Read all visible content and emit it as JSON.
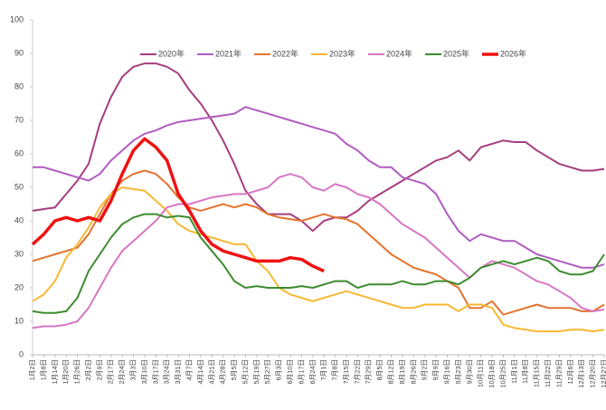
{
  "chart_data": {
    "type": "line",
    "categories": [
      "1月2日",
      "1月8日",
      "1月14日",
      "1月20日",
      "1月26日",
      "2月2日",
      "2月9日",
      "2月17日",
      "2月24日",
      "3月3日",
      "3月10日",
      "3月17日",
      "3月24日",
      "3月31日",
      "4月7日",
      "4月14日",
      "4月21日",
      "4月28日",
      "5月5日",
      "5月12日",
      "5月19日",
      "5月27日",
      "6月3日",
      "6月10日",
      "6月17日",
      "6月24日",
      "7月1日",
      "7月8日",
      "7月15日",
      "7月22日",
      "7月29日",
      "8月5日",
      "8月12日",
      "8月19日",
      "8月26日",
      "9月2日",
      "9月9日",
      "9月16日",
      "9月23日",
      "9月30日",
      "10月11日",
      "10月18日",
      "10月25日",
      "11月1日",
      "11月8日",
      "11月15日",
      "11月22日",
      "11月29日",
      "12月6日",
      "12月13日",
      "12月20日",
      "12月27日"
    ],
    "series": [
      {
        "name": "2020年",
        "color": "#a63d7e",
        "values": [
          43,
          43.5,
          44,
          48,
          52,
          57,
          69,
          77,
          83,
          86,
          87,
          87,
          86,
          84,
          79,
          75,
          70,
          64,
          57,
          49,
          45,
          42,
          42,
          42,
          40,
          37,
          40,
          41,
          41,
          43,
          46,
          48,
          50,
          52,
          54,
          56,
          58,
          59,
          61,
          58,
          62,
          63,
          64,
          63.5,
          63.5,
          61,
          59,
          57,
          56,
          55,
          55,
          55.5
        ]
      },
      {
        "name": "2021年",
        "color": "#b05cc0",
        "values": [
          56,
          56,
          55,
          54,
          53,
          52,
          54,
          58,
          61,
          64,
          66,
          67,
          68.5,
          69.5,
          70,
          70.5,
          71,
          71.5,
          72,
          74,
          73,
          72,
          71,
          70,
          69,
          68,
          67,
          66,
          63,
          61,
          58,
          56,
          56,
          53,
          52,
          51,
          48,
          42,
          37,
          34,
          36,
          35,
          34,
          34,
          32,
          30,
          29,
          28,
          27,
          26,
          26,
          27
        ]
      },
      {
        "name": "2022年",
        "color": "#e4732e",
        "values": [
          28,
          29,
          30,
          31,
          32,
          36,
          42,
          48,
          52,
          54,
          55,
          54,
          51,
          47,
          44,
          43,
          44,
          45,
          44,
          45,
          44,
          42,
          41,
          40.5,
          40,
          41,
          42,
          41,
          40.5,
          39,
          36,
          33,
          30,
          28,
          26,
          25,
          24,
          22,
          20,
          14,
          14,
          16,
          12,
          13,
          14,
          15,
          14,
          14,
          14,
          13,
          13,
          15
        ]
      },
      {
        "name": "2023年",
        "color": "#f6b832",
        "values": [
          16,
          18,
          22,
          29,
          33,
          38,
          44,
          48,
          50,
          49.5,
          49,
          46,
          43,
          39,
          37,
          36,
          35,
          34,
          33,
          33,
          28,
          25,
          20,
          18,
          17,
          16,
          17,
          18,
          19,
          18,
          17,
          16,
          15,
          14,
          14,
          15,
          15,
          15,
          13,
          15,
          15,
          14,
          9,
          8,
          7.5,
          7,
          7,
          7,
          7.5,
          7.5,
          7,
          7.5
        ]
      },
      {
        "name": "2024年",
        "color": "#d776c4",
        "values": [
          8,
          8.5,
          8.5,
          9,
          10,
          14,
          20,
          26,
          31,
          34,
          37,
          40,
          44,
          45,
          45,
          46,
          47,
          47.5,
          48,
          48,
          49,
          50,
          53,
          54,
          53,
          50,
          49,
          51,
          50,
          48,
          47,
          45,
          42,
          39,
          37,
          35,
          32,
          29,
          26,
          23,
          26,
          28,
          27,
          26,
          24,
          22,
          21,
          19,
          17,
          14,
          13,
          13.5
        ]
      },
      {
        "name": "2025年",
        "color": "#3d8b2f",
        "values": [
          13,
          12.5,
          12.5,
          13,
          17,
          25,
          30,
          35,
          39,
          41,
          42,
          42,
          41,
          41.5,
          41,
          35,
          31,
          27,
          22,
          20,
          20.5,
          20,
          20,
          20,
          20.5,
          20,
          21,
          22,
          22,
          20,
          21,
          21,
          21,
          22,
          21,
          21,
          22,
          22,
          21,
          23,
          26,
          27,
          28,
          27,
          28,
          29,
          28,
          25,
          24,
          24,
          25,
          30
        ]
      },
      {
        "name": "2026年",
        "color": "#ee1111",
        "values": [
          33,
          36,
          40,
          41,
          40,
          41,
          40,
          46,
          54,
          61,
          64.5,
          62,
          58,
          48,
          43,
          37,
          33,
          31,
          30,
          29,
          28,
          28,
          28,
          29,
          28.5,
          26.5,
          25,
          null,
          null,
          null,
          null,
          null,
          null,
          null,
          null,
          null,
          null,
          null,
          null,
          null,
          null,
          null,
          null,
          null,
          null,
          null,
          null,
          null,
          null,
          null,
          null,
          null
        ]
      }
    ],
    "ylim": [
      0,
      100
    ],
    "yticks": [
      0,
      10,
      20,
      30,
      40,
      50,
      60,
      70,
      80,
      90,
      100
    ],
    "grid": false,
    "legend": "top"
  }
}
